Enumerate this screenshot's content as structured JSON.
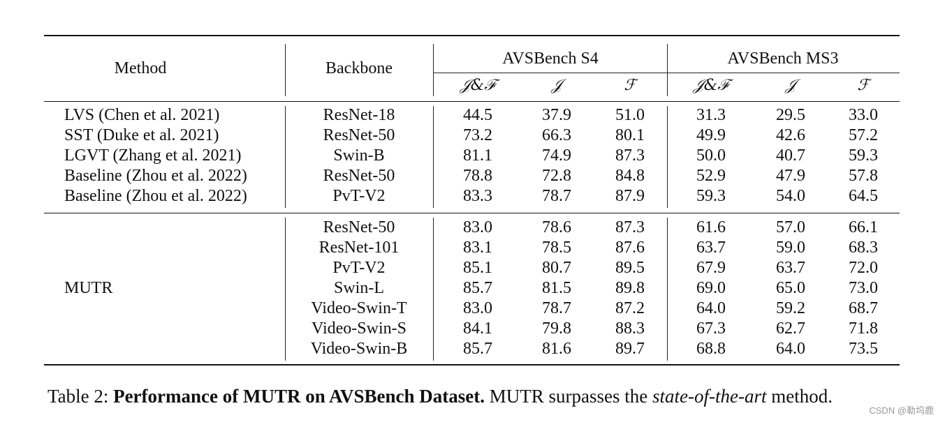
{
  "table": {
    "header": {
      "method": "Method",
      "backbone": "Backbone",
      "group_s4": "AVSBench S4",
      "group_ms3": "AVSBench MS3",
      "metrics": [
        "𝒥&ℱ",
        "𝒥",
        "ℱ",
        "𝒥&ℱ",
        "𝒥",
        "ℱ"
      ]
    },
    "group1": [
      {
        "method": "LVS (Chen et al. 2021)",
        "backbone": "ResNet-18",
        "values": [
          "44.5",
          "37.9",
          "51.0",
          "31.3",
          "29.5",
          "33.0"
        ]
      },
      {
        "method": "SST (Duke et al. 2021)",
        "backbone": "ResNet-50",
        "values": [
          "73.2",
          "66.3",
          "80.1",
          "49.9",
          "42.6",
          "57.2"
        ]
      },
      {
        "method": "LGVT (Zhang et al. 2021)",
        "backbone": "Swin-B",
        "values": [
          "81.1",
          "74.9",
          "87.3",
          "50.0",
          "40.7",
          "59.3"
        ]
      },
      {
        "method": "Baseline (Zhou et al. 2022)",
        "backbone": "ResNet-50",
        "values": [
          "78.8",
          "72.8",
          "84.8",
          "52.9",
          "47.9",
          "57.8"
        ]
      },
      {
        "method": "Baseline (Zhou et al. 2022)",
        "backbone": "PvT-V2",
        "values": [
          "83.3",
          "78.7",
          "87.9",
          "59.3",
          "54.0",
          "64.5"
        ]
      }
    ],
    "group2_method": "MUTR",
    "group2": [
      {
        "backbone": "ResNet-50",
        "values": [
          "83.0",
          "78.6",
          "87.3",
          "61.6",
          "57.0",
          "66.1"
        ]
      },
      {
        "backbone": "ResNet-101",
        "values": [
          "83.1",
          "78.5",
          "87.6",
          "63.7",
          "59.0",
          "68.3"
        ]
      },
      {
        "backbone": "PvT-V2",
        "values": [
          "85.1",
          "80.7",
          "89.5",
          "67.9",
          "63.7",
          "72.0"
        ]
      },
      {
        "backbone": "Swin-L",
        "values": [
          "85.7",
          "81.5",
          "89.8",
          "69.0",
          "65.0",
          "73.0"
        ]
      },
      {
        "backbone": "Video-Swin-T",
        "values": [
          "83.0",
          "78.7",
          "87.2",
          "64.0",
          "59.2",
          "68.7"
        ]
      },
      {
        "backbone": "Video-Swin-S",
        "values": [
          "84.1",
          "79.8",
          "88.3",
          "67.3",
          "62.7",
          "71.8"
        ]
      },
      {
        "backbone": "Video-Swin-B",
        "values": [
          "85.7",
          "81.6",
          "89.7",
          "68.8",
          "64.0",
          "73.5"
        ]
      }
    ]
  },
  "caption": {
    "label": "Table 2: ",
    "bold": "Performance of MUTR on AVSBench Dataset.",
    "text1": " MUTR surpasses the ",
    "italic": "state-of-the-art",
    "text2": " method."
  },
  "watermark": "CSDN @勒坞鹿"
}
